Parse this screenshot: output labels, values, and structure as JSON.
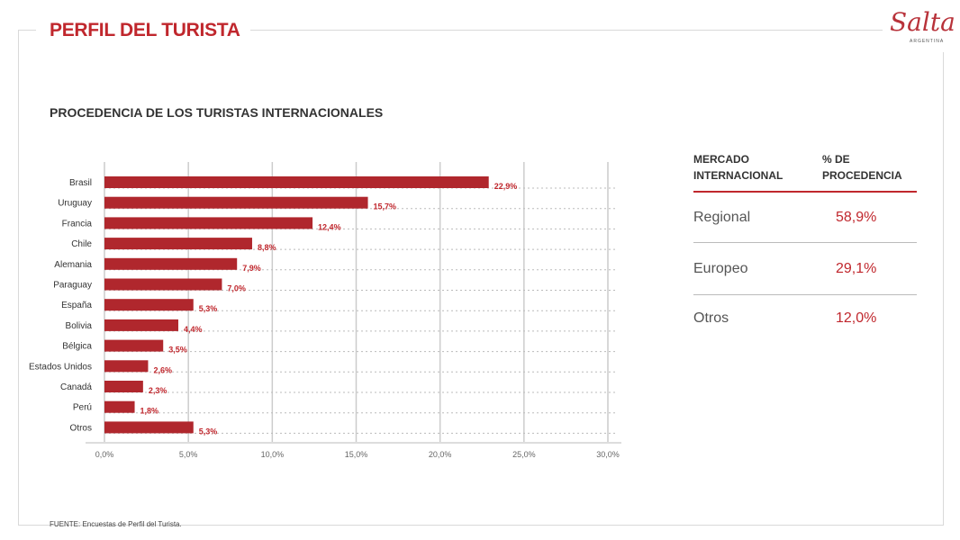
{
  "header": {
    "title": "PERFIL DEL TURISTA",
    "logo": "Salta",
    "logo_sub": "ARGENTINA"
  },
  "footer": {
    "source": "FUENTE: Encuestas de Perfil del Turista."
  },
  "colors": {
    "accent": "#c0272d",
    "bar": "#b0272d"
  },
  "table": {
    "headers": [
      "MERCADO INTERNACIONAL",
      "% DE PROCEDENCIA"
    ],
    "rows": [
      {
        "market": "Regional",
        "pct": "58,9%"
      },
      {
        "market": "Europeo",
        "pct": "29,1%"
      },
      {
        "market": "Otros",
        "pct": "12,0%"
      }
    ]
  },
  "chart_data": {
    "type": "bar",
    "orientation": "horizontal",
    "title": "PROCEDENCIA DE LOS TURISTAS INTERNACIONALES",
    "categories": [
      "Brasil",
      "Uruguay",
      "Francia",
      "Chile",
      "Alemania",
      "Paraguay",
      "España",
      "Bolivia",
      "Bélgica",
      "Estados Unidos",
      "Canadá",
      "Perú",
      "Otros"
    ],
    "values": [
      22.9,
      15.7,
      12.4,
      8.8,
      7.9,
      7.0,
      5.3,
      4.4,
      3.5,
      2.6,
      2.3,
      1.8,
      5.3
    ],
    "labels": [
      "22,9%",
      "15,7%",
      "12,4%",
      "8,8%",
      "7,9%",
      "7,0%",
      "5,3%",
      "4,4%",
      "3,5%",
      "2,6%",
      "2,3%",
      "1,8%",
      "5,3%"
    ],
    "xticks": [
      "0,0%",
      "5,0%",
      "10,0%",
      "15,0%",
      "20,0%",
      "25,0%",
      "30,0%"
    ],
    "xlim": [
      0,
      30
    ],
    "grid": true
  }
}
